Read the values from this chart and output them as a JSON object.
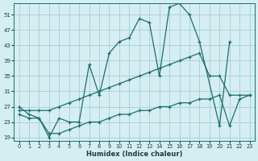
{
  "xlabel": "Humidex (Indice chaleur)",
  "bg_color": "#d4eef2",
  "grid_color": "#a8cdd4",
  "line_color": "#1e6e6e",
  "xlim": [
    -0.5,
    23.5
  ],
  "ylim": [
    18,
    54
  ],
  "yticks": [
    19,
    23,
    27,
    31,
    35,
    39,
    43,
    47,
    51
  ],
  "xticks": [
    0,
    1,
    2,
    3,
    4,
    5,
    6,
    7,
    8,
    9,
    10,
    11,
    12,
    13,
    14,
    15,
    16,
    17,
    18,
    19,
    20,
    21,
    22,
    23
  ],
  "series1_x": [
    0,
    1,
    2,
    3,
    4,
    5,
    6,
    7,
    8,
    9,
    10,
    11,
    12,
    13,
    14,
    15,
    16,
    17,
    18,
    20,
    21
  ],
  "series1_y": [
    27,
    25,
    24,
    19,
    24,
    23,
    23,
    38,
    30,
    41,
    44,
    45,
    50,
    49,
    35,
    53,
    54,
    51,
    44,
    22,
    44
  ],
  "series2_x": [
    0,
    1,
    2,
    3,
    4,
    5,
    6,
    7,
    8,
    9,
    10,
    11,
    12,
    13,
    14,
    15,
    16,
    17,
    18,
    19,
    20,
    21,
    22,
    23
  ],
  "series2_y": [
    26,
    26,
    26,
    26,
    27,
    28,
    29,
    30,
    31,
    32,
    33,
    34,
    35,
    36,
    37,
    38,
    39,
    40,
    41,
    35,
    35,
    30,
    30,
    30
  ],
  "series3_x": [
    0,
    1,
    2,
    3,
    4,
    5,
    6,
    7,
    8,
    9,
    10,
    11,
    12,
    13,
    14,
    15,
    16,
    17,
    18,
    19,
    20,
    21,
    22,
    23
  ],
  "series3_y": [
    25,
    24,
    24,
    20,
    20,
    21,
    22,
    23,
    23,
    24,
    25,
    25,
    26,
    26,
    27,
    27,
    28,
    28,
    29,
    29,
    30,
    22,
    29,
    30
  ]
}
